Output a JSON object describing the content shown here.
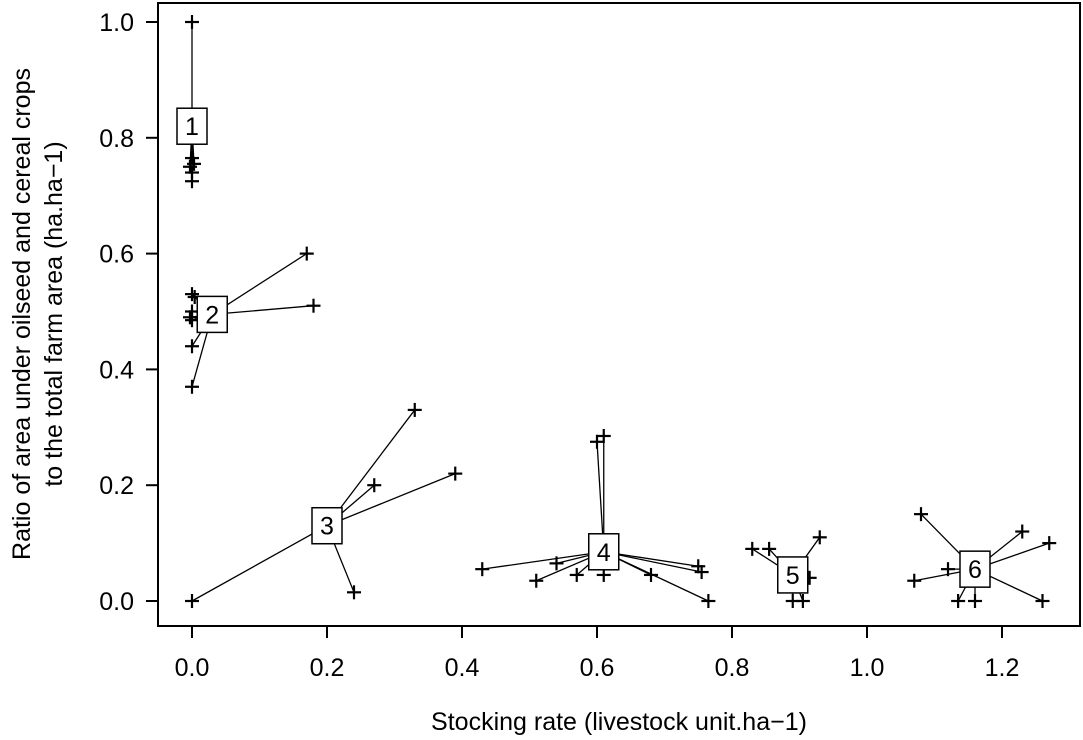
{
  "chart_data": {
    "type": "scatter",
    "xlabel": "Stocking rate (livestock unit.ha−1)",
    "ylabel_line1": "Ratio of area under oilseed and cereal crops",
    "ylabel_line2": "to the total farm area (ha.ha−1)",
    "xlim": [
      -0.08,
      1.28
    ],
    "ylim": [
      -0.04,
      1.02
    ],
    "x_ticks": [
      0.0,
      0.2,
      0.4,
      0.6,
      0.8,
      1.0,
      1.2
    ],
    "x_tick_labels": [
      "0.0",
      "0.2",
      "0.4",
      "0.6",
      "0.8",
      "1.0",
      "1.2"
    ],
    "y_ticks": [
      0.0,
      0.2,
      0.4,
      0.6,
      0.8,
      1.0
    ],
    "y_tick_labels": [
      "0.0",
      "0.2",
      "0.4",
      "0.6",
      "0.8",
      "1.0"
    ],
    "grid": false,
    "clusters": [
      {
        "label": "1",
        "center": [
          0.0,
          0.82
        ],
        "points": [
          [
            0.0,
            1.0
          ],
          [
            0.0,
            0.765
          ],
          [
            0.003,
            0.755
          ],
          [
            -0.003,
            0.75
          ],
          [
            0.0,
            0.74
          ],
          [
            0.0,
            0.725
          ]
        ]
      },
      {
        "label": "2",
        "center": [
          0.03,
          0.495
        ],
        "points": [
          [
            0.0,
            0.53
          ],
          [
            0.004,
            0.525
          ],
          [
            0.0,
            0.5
          ],
          [
            -0.003,
            0.49
          ],
          [
            0.0,
            0.485
          ],
          [
            0.0,
            0.44
          ],
          [
            0.0,
            0.37
          ],
          [
            0.17,
            0.6
          ],
          [
            0.18,
            0.51
          ]
        ]
      },
      {
        "label": "3",
        "center": [
          0.2,
          0.13
        ],
        "points": [
          [
            0.0,
            0.0
          ],
          [
            0.24,
            0.015
          ],
          [
            0.27,
            0.2
          ],
          [
            0.33,
            0.33
          ],
          [
            0.39,
            0.22
          ]
        ]
      },
      {
        "label": "4",
        "center": [
          0.61,
          0.085
        ],
        "points": [
          [
            0.6,
            0.275
          ],
          [
            0.61,
            0.285
          ],
          [
            0.43,
            0.055
          ],
          [
            0.51,
            0.035
          ],
          [
            0.54,
            0.065
          ],
          [
            0.57,
            0.045
          ],
          [
            0.61,
            0.045
          ],
          [
            0.68,
            0.045
          ],
          [
            0.75,
            0.06
          ],
          [
            0.755,
            0.05
          ],
          [
            0.765,
            0.0
          ]
        ]
      },
      {
        "label": "5",
        "center": [
          0.89,
          0.045
        ],
        "points": [
          [
            0.83,
            0.09
          ],
          [
            0.855,
            0.09
          ],
          [
            0.89,
            0.0
          ],
          [
            0.905,
            0.0
          ],
          [
            0.915,
            0.04
          ],
          [
            0.93,
            0.11
          ]
        ]
      },
      {
        "label": "6",
        "center": [
          1.16,
          0.055
        ],
        "points": [
          [
            1.07,
            0.035
          ],
          [
            1.08,
            0.15
          ],
          [
            1.12,
            0.055
          ],
          [
            1.135,
            0.0
          ],
          [
            1.16,
            0.0
          ],
          [
            1.23,
            0.12
          ],
          [
            1.26,
            0.0
          ],
          [
            1.27,
            0.1
          ]
        ]
      }
    ]
  }
}
